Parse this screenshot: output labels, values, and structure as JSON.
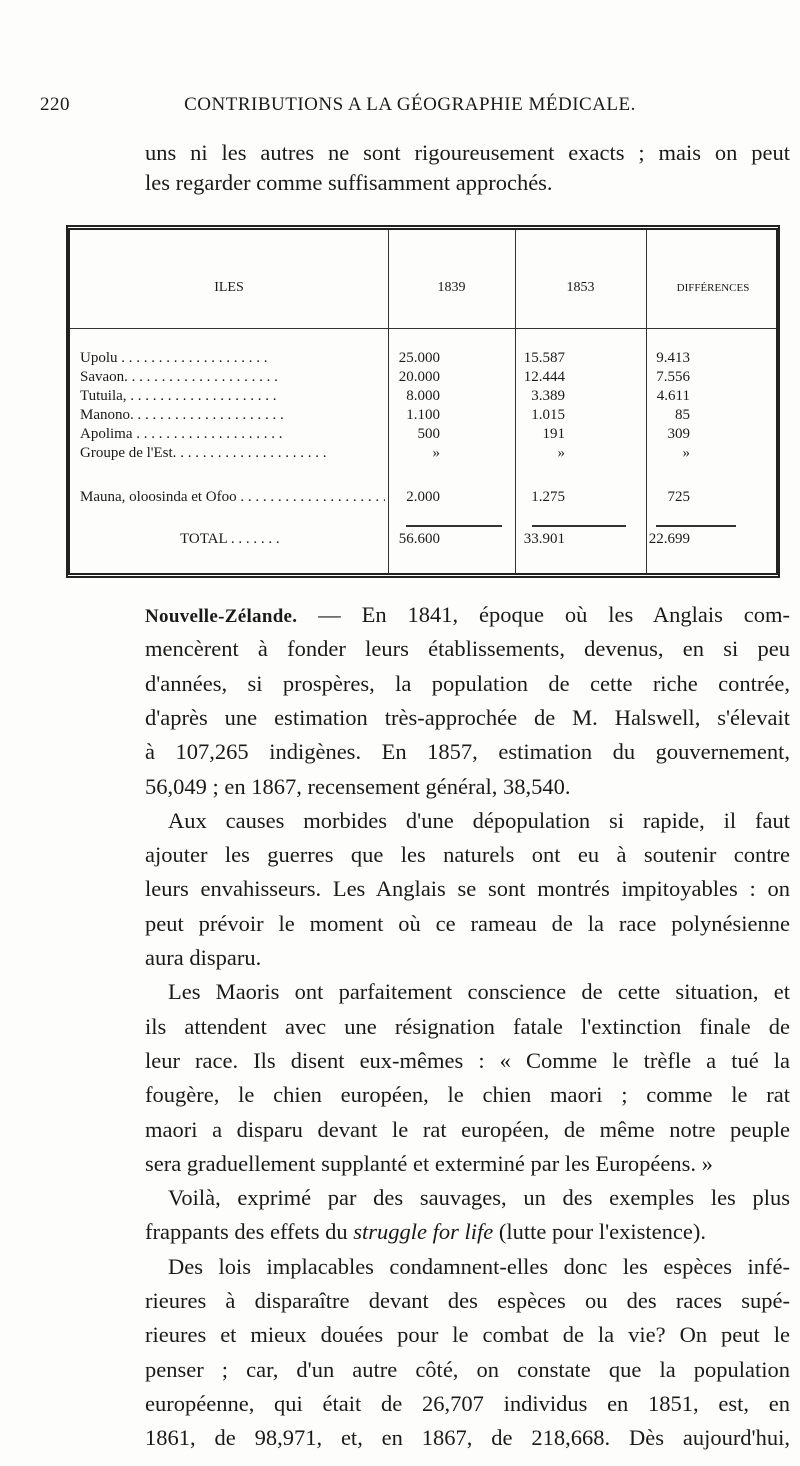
{
  "header": {
    "page_number": "220",
    "running_title": "CONTRIBUTIONS A LA GÉOGRAPHIE MÉDICALE."
  },
  "intro_lines": [
    "uns ni les autres ne sont rigoureusement exacts ; mais on peut",
    "les regarder comme suffisamment approchés."
  ],
  "table": {
    "headers": [
      "ILES",
      "1839",
      "1853",
      "DIFFÉRENCES"
    ],
    "rows": [
      {
        "name": "Upolu",
        "v1839": "25.000",
        "v1853": "15.587",
        "diff": "9.413"
      },
      {
        "name": "Savaon.",
        "v1839": "20.000",
        "v1853": "12.444",
        "diff": "7.556"
      },
      {
        "name": "Tutuila,",
        "v1839": "8.000",
        "v1853": "3.389",
        "diff": "4.611"
      },
      {
        "name": "Manono.",
        "v1839": "1.100",
        "v1853": "1.015",
        "diff": "85"
      },
      {
        "name": "Apolima",
        "v1839": "500",
        "v1853": "191",
        "diff": "309"
      },
      {
        "name": "Groupe de l'Est.",
        "v1839": "»",
        "v1853": "»",
        "diff": "»"
      },
      {
        "name": "Mauna, oloosinda et Ofoo",
        "v1839": "2.000",
        "v1853": "1.275",
        "diff": "725"
      }
    ],
    "total": {
      "label": "TOTAL",
      "v1839": "56.600",
      "v1853": "33.901",
      "diff": "22.699"
    }
  },
  "body": {
    "section_heading": "Nouvelle-Zélande.",
    "lines": [
      " — En 1841, époque où les Anglais com-",
      "mencèrent à fonder leurs établissements, devenus, en si peu",
      "d'années, si prospères, la population de cette riche contrée,",
      "d'après une estimation très-approchée de M. Halswell, s'élevait",
      "à 107,265 indigènes. En 1857, estimation du gouvernement,",
      "56,049 ; en 1867, recensement général, 38,540.",
      "Aux causes morbides d'une dépopulation si rapide, il faut",
      "ajouter les guerres que les naturels ont eu à soutenir contre",
      "leurs envahisseurs. Les Anglais se sont montrés impitoyables : on",
      "peut prévoir le moment où ce rameau de la race polynésienne",
      "aura disparu.",
      "Les Maoris ont parfaitement conscience de cette situation, et",
      "ils attendent avec une résignation fatale l'extinction finale de",
      "leur race. Ils disent eux-mêmes : « Comme le trèfle a tué la",
      "fougère, le chien européen, le chien maori ; comme le rat",
      "maori a disparu devant le rat européen, de même notre peuple",
      "sera graduellement supplanté et exterminé par les Européens. »",
      "Voilà, exprimé par des sauvages, un des exemples les plus",
      "frappants des effets du struggle for life (lutte pour l'existence).",
      "Des lois implacables condamnent-elles donc les espèces infé-",
      "rieures à disparaître devant des espèces ou des races supé-",
      "rieures et mieux douées pour le combat de la vie? On peut le",
      "penser ; car, d'un autre côté, on constate que la population",
      "européenne, qui était de 26,707 individus en 1851, est, en",
      "1861, de 98,971, et, en 1867, de 218,668. Dès aujourd'hui,"
    ]
  }
}
